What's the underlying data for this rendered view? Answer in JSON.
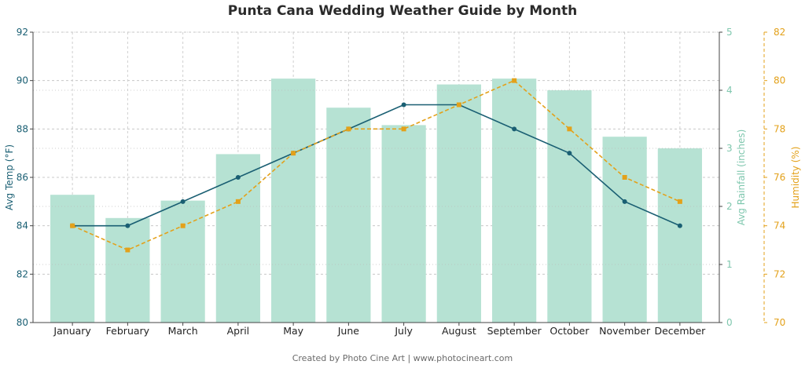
{
  "chart_data": {
    "type": "bar",
    "title": "Punta Cana Wedding Weather Guide by Month",
    "categories": [
      "January",
      "February",
      "March",
      "April",
      "May",
      "June",
      "July",
      "August",
      "September",
      "October",
      "November",
      "December"
    ],
    "series": [
      {
        "name": "Avg Rainfall (inches)",
        "type": "bar",
        "axis": "right-inner",
        "color": "#b6e2d3",
        "values": [
          2.2,
          1.8,
          2.1,
          2.9,
          4.2,
          3.7,
          3.4,
          4.1,
          4.2,
          4.0,
          3.2,
          3.0
        ]
      },
      {
        "name": "Avg Temp (°F)",
        "type": "line",
        "axis": "left",
        "color": "#1a5f73",
        "values": [
          84,
          84,
          85,
          86,
          87,
          88,
          89,
          89,
          88,
          87,
          85,
          84
        ]
      },
      {
        "name": "Humidity (%)",
        "type": "line",
        "axis": "right-outer",
        "color": "#e3a11a",
        "dashed": true,
        "values": [
          74,
          73,
          74,
          75,
          77,
          78,
          78,
          79,
          80,
          78,
          76,
          75
        ]
      }
    ],
    "axes": {
      "left": {
        "label": "Avg Temp (°F)",
        "range": [
          80,
          92
        ],
        "ticks": [
          80,
          82,
          84,
          86,
          88,
          90,
          92
        ],
        "color": "#1a5f73"
      },
      "right_inner": {
        "label": "Avg Rainfall (inches)",
        "range": [
          0,
          5
        ],
        "ticks": [
          0,
          1,
          2,
          3,
          4,
          5
        ],
        "color": "#7fc7ae"
      },
      "right_outer": {
        "label": "Humidity (%)",
        "range": [
          70,
          82
        ],
        "ticks": [
          70,
          72,
          74,
          76,
          78,
          80,
          82
        ],
        "color": "#e3a11a"
      }
    },
    "grid": true
  },
  "footer": {
    "credit": "Created by Photo Cine Art | www.photocineart.com"
  }
}
